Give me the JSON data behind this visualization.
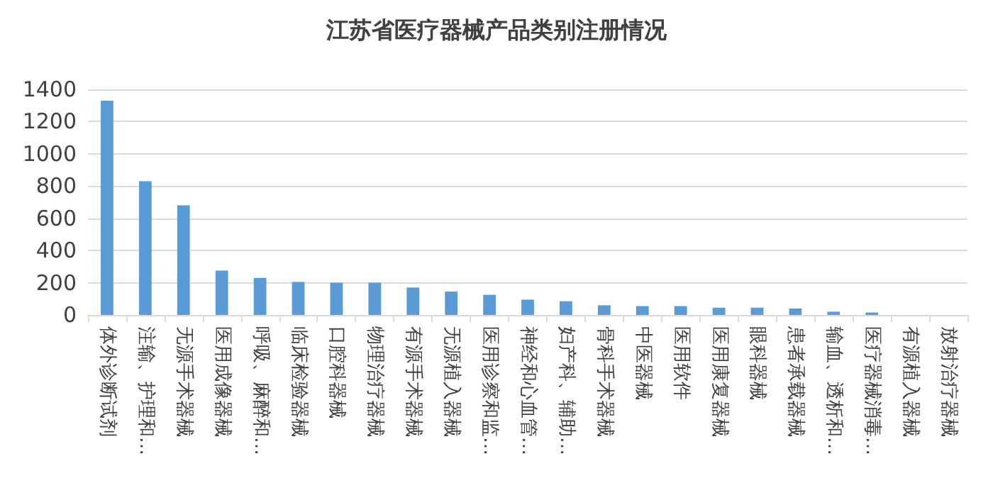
{
  "chart_data": {
    "type": "bar",
    "title": "江苏省医疗器械产品类别注册情况",
    "categories": [
      "体外诊断试剂",
      "注输、护理和…",
      "无源手术器械",
      "医用成像器械",
      "呼吸、麻醉和…",
      "临床检验器械",
      "口腔科器械",
      "物理治疗器械",
      "有源手术器械",
      "无源植入器械",
      "医用诊察和监…",
      "神经和心血管…",
      "妇产科、辅助…",
      "骨科手术器械",
      "中医器械",
      "医用软件",
      "医用康复器械",
      "眼科器械",
      "患者承载器械",
      "输血、透析和…",
      "医疗器械消毒…",
      "有源植入器械",
      "放射治疗器械"
    ],
    "values": [
      1330,
      830,
      680,
      275,
      230,
      205,
      200,
      200,
      170,
      145,
      125,
      95,
      85,
      60,
      55,
      55,
      45,
      45,
      40,
      20,
      15,
      0,
      0
    ],
    "color": "#5b9bd5",
    "ylim": [
      0,
      1400
    ],
    "yticks": [
      0,
      200,
      400,
      600,
      800,
      1000,
      1200,
      1400
    ],
    "grid": "y"
  }
}
